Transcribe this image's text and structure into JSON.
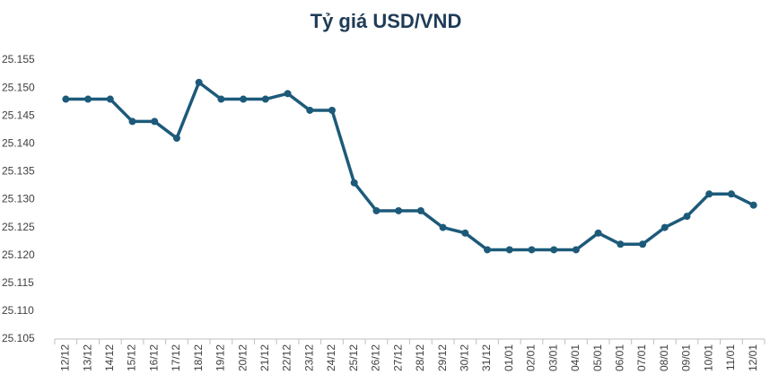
{
  "chart_data": {
    "type": "line",
    "title": "Tỷ giá USD/VND",
    "categories": [
      "12/12",
      "13/12",
      "14/12",
      "15/12",
      "16/12",
      "17/12",
      "18/12",
      "19/12",
      "20/12",
      "21/12",
      "22/12",
      "23/12",
      "24/12",
      "25/12",
      "26/12",
      "27/12",
      "28/12",
      "29/12",
      "30/12",
      "31/12",
      "01/01",
      "02/01",
      "03/01",
      "04/01",
      "05/01",
      "06/01",
      "07/01",
      "08/01",
      "09/01",
      "10/01",
      "11/01",
      "12/01"
    ],
    "series": [
      {
        "name": "USD/VND",
        "color": "#1d5a7a",
        "values": [
          25148,
          25148,
          25148,
          25144,
          25144,
          25141,
          25151,
          25148,
          25148,
          25148,
          25149,
          25146,
          25146,
          25133,
          25128,
          25128,
          25128,
          25125,
          25124,
          25121,
          25121,
          25121,
          25121,
          25121,
          25124,
          25122,
          25122,
          25125,
          25127,
          25131,
          25131,
          25129
        ]
      }
    ],
    "ylim": [
      25105,
      25155
    ],
    "yticks": [
      {
        "value": 25105,
        "label": "25.105"
      },
      {
        "value": 25110,
        "label": "25.110"
      },
      {
        "value": 25115,
        "label": "25.115"
      },
      {
        "value": 25120,
        "label": "25.120"
      },
      {
        "value": 25125,
        "label": "25.125"
      },
      {
        "value": 25130,
        "label": "25.130"
      },
      {
        "value": 25135,
        "label": "25.135"
      },
      {
        "value": 25140,
        "label": "25.140"
      },
      {
        "value": 25145,
        "label": "25.145"
      },
      {
        "value": 25150,
        "label": "25.150"
      },
      {
        "value": 25155,
        "label": "25.155"
      }
    ],
    "grid": false
  }
}
